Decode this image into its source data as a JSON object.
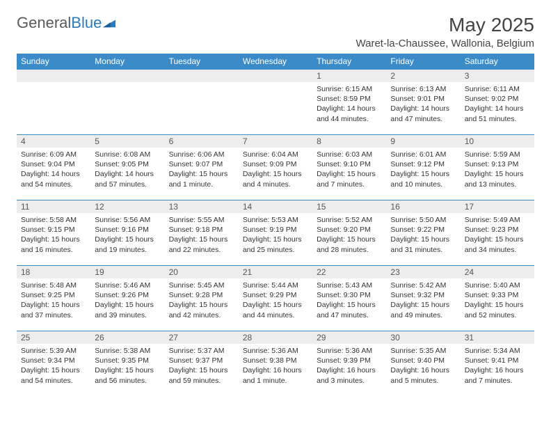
{
  "brand": {
    "name_gray": "General",
    "name_blue": "Blue"
  },
  "header": {
    "month_title": "May 2025",
    "location": "Waret-la-Chaussee, Wallonia, Belgium"
  },
  "colors": {
    "header_bg": "#3b8bc9",
    "header_text": "#ffffff",
    "daynum_bg": "#ededed",
    "border": "#3b8bc9",
    "text": "#333333"
  },
  "weekdays": [
    "Sunday",
    "Monday",
    "Tuesday",
    "Wednesday",
    "Thursday",
    "Friday",
    "Saturday"
  ],
  "weeks": [
    [
      null,
      null,
      null,
      null,
      {
        "n": "1",
        "sr": "Sunrise: 6:15 AM",
        "ss": "Sunset: 8:59 PM",
        "d1": "Daylight: 14 hours",
        "d2": "and 44 minutes."
      },
      {
        "n": "2",
        "sr": "Sunrise: 6:13 AM",
        "ss": "Sunset: 9:01 PM",
        "d1": "Daylight: 14 hours",
        "d2": "and 47 minutes."
      },
      {
        "n": "3",
        "sr": "Sunrise: 6:11 AM",
        "ss": "Sunset: 9:02 PM",
        "d1": "Daylight: 14 hours",
        "d2": "and 51 minutes."
      }
    ],
    [
      {
        "n": "4",
        "sr": "Sunrise: 6:09 AM",
        "ss": "Sunset: 9:04 PM",
        "d1": "Daylight: 14 hours",
        "d2": "and 54 minutes."
      },
      {
        "n": "5",
        "sr": "Sunrise: 6:08 AM",
        "ss": "Sunset: 9:05 PM",
        "d1": "Daylight: 14 hours",
        "d2": "and 57 minutes."
      },
      {
        "n": "6",
        "sr": "Sunrise: 6:06 AM",
        "ss": "Sunset: 9:07 PM",
        "d1": "Daylight: 15 hours",
        "d2": "and 1 minute."
      },
      {
        "n": "7",
        "sr": "Sunrise: 6:04 AM",
        "ss": "Sunset: 9:09 PM",
        "d1": "Daylight: 15 hours",
        "d2": "and 4 minutes."
      },
      {
        "n": "8",
        "sr": "Sunrise: 6:03 AM",
        "ss": "Sunset: 9:10 PM",
        "d1": "Daylight: 15 hours",
        "d2": "and 7 minutes."
      },
      {
        "n": "9",
        "sr": "Sunrise: 6:01 AM",
        "ss": "Sunset: 9:12 PM",
        "d1": "Daylight: 15 hours",
        "d2": "and 10 minutes."
      },
      {
        "n": "10",
        "sr": "Sunrise: 5:59 AM",
        "ss": "Sunset: 9:13 PM",
        "d1": "Daylight: 15 hours",
        "d2": "and 13 minutes."
      }
    ],
    [
      {
        "n": "11",
        "sr": "Sunrise: 5:58 AM",
        "ss": "Sunset: 9:15 PM",
        "d1": "Daylight: 15 hours",
        "d2": "and 16 minutes."
      },
      {
        "n": "12",
        "sr": "Sunrise: 5:56 AM",
        "ss": "Sunset: 9:16 PM",
        "d1": "Daylight: 15 hours",
        "d2": "and 19 minutes."
      },
      {
        "n": "13",
        "sr": "Sunrise: 5:55 AM",
        "ss": "Sunset: 9:18 PM",
        "d1": "Daylight: 15 hours",
        "d2": "and 22 minutes."
      },
      {
        "n": "14",
        "sr": "Sunrise: 5:53 AM",
        "ss": "Sunset: 9:19 PM",
        "d1": "Daylight: 15 hours",
        "d2": "and 25 minutes."
      },
      {
        "n": "15",
        "sr": "Sunrise: 5:52 AM",
        "ss": "Sunset: 9:20 PM",
        "d1": "Daylight: 15 hours",
        "d2": "and 28 minutes."
      },
      {
        "n": "16",
        "sr": "Sunrise: 5:50 AM",
        "ss": "Sunset: 9:22 PM",
        "d1": "Daylight: 15 hours",
        "d2": "and 31 minutes."
      },
      {
        "n": "17",
        "sr": "Sunrise: 5:49 AM",
        "ss": "Sunset: 9:23 PM",
        "d1": "Daylight: 15 hours",
        "d2": "and 34 minutes."
      }
    ],
    [
      {
        "n": "18",
        "sr": "Sunrise: 5:48 AM",
        "ss": "Sunset: 9:25 PM",
        "d1": "Daylight: 15 hours",
        "d2": "and 37 minutes."
      },
      {
        "n": "19",
        "sr": "Sunrise: 5:46 AM",
        "ss": "Sunset: 9:26 PM",
        "d1": "Daylight: 15 hours",
        "d2": "and 39 minutes."
      },
      {
        "n": "20",
        "sr": "Sunrise: 5:45 AM",
        "ss": "Sunset: 9:28 PM",
        "d1": "Daylight: 15 hours",
        "d2": "and 42 minutes."
      },
      {
        "n": "21",
        "sr": "Sunrise: 5:44 AM",
        "ss": "Sunset: 9:29 PM",
        "d1": "Daylight: 15 hours",
        "d2": "and 44 minutes."
      },
      {
        "n": "22",
        "sr": "Sunrise: 5:43 AM",
        "ss": "Sunset: 9:30 PM",
        "d1": "Daylight: 15 hours",
        "d2": "and 47 minutes."
      },
      {
        "n": "23",
        "sr": "Sunrise: 5:42 AM",
        "ss": "Sunset: 9:32 PM",
        "d1": "Daylight: 15 hours",
        "d2": "and 49 minutes."
      },
      {
        "n": "24",
        "sr": "Sunrise: 5:40 AM",
        "ss": "Sunset: 9:33 PM",
        "d1": "Daylight: 15 hours",
        "d2": "and 52 minutes."
      }
    ],
    [
      {
        "n": "25",
        "sr": "Sunrise: 5:39 AM",
        "ss": "Sunset: 9:34 PM",
        "d1": "Daylight: 15 hours",
        "d2": "and 54 minutes."
      },
      {
        "n": "26",
        "sr": "Sunrise: 5:38 AM",
        "ss": "Sunset: 9:35 PM",
        "d1": "Daylight: 15 hours",
        "d2": "and 56 minutes."
      },
      {
        "n": "27",
        "sr": "Sunrise: 5:37 AM",
        "ss": "Sunset: 9:37 PM",
        "d1": "Daylight: 15 hours",
        "d2": "and 59 minutes."
      },
      {
        "n": "28",
        "sr": "Sunrise: 5:36 AM",
        "ss": "Sunset: 9:38 PM",
        "d1": "Daylight: 16 hours",
        "d2": "and 1 minute."
      },
      {
        "n": "29",
        "sr": "Sunrise: 5:36 AM",
        "ss": "Sunset: 9:39 PM",
        "d1": "Daylight: 16 hours",
        "d2": "and 3 minutes."
      },
      {
        "n": "30",
        "sr": "Sunrise: 5:35 AM",
        "ss": "Sunset: 9:40 PM",
        "d1": "Daylight: 16 hours",
        "d2": "and 5 minutes."
      },
      {
        "n": "31",
        "sr": "Sunrise: 5:34 AM",
        "ss": "Sunset: 9:41 PM",
        "d1": "Daylight: 16 hours",
        "d2": "and 7 minutes."
      }
    ]
  ]
}
